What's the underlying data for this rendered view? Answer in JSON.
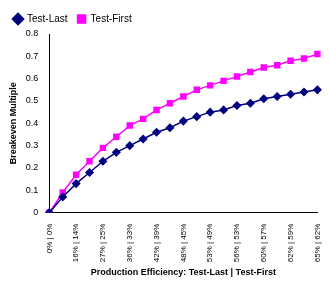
{
  "chart_data": {
    "type": "line",
    "x_label": "Production Efficiency: Test-Last | Test-First",
    "y_label": "Breakeven Multiple",
    "categories": [
      "0% | 0%",
      null,
      "16% | 14%",
      null,
      "27% | 25%",
      null,
      "36% | 33%",
      null,
      "42% | 39%",
      null,
      "48% | 45%",
      null,
      "53% | 49%",
      null,
      "56% | 53%",
      null,
      "60% | 57%",
      null,
      "62% | 59%",
      null,
      "65% | 62%"
    ],
    "series": [
      {
        "name": "Test-Last",
        "color": "#000080",
        "marker": "diamond",
        "line_style": "solid",
        "values": [
          0,
          0.07,
          0.13,
          0.18,
          0.23,
          0.27,
          0.3,
          0.33,
          0.36,
          0.38,
          0.41,
          0.43,
          0.45,
          0.46,
          0.48,
          0.49,
          0.51,
          0.52,
          0.53,
          0.54,
          0.55
        ]
      },
      {
        "name": "Test-First",
        "color": "#ff00ff",
        "marker": "square",
        "line_style": "solid",
        "values": [
          0,
          0.09,
          0.17,
          0.23,
          0.29,
          0.34,
          0.39,
          0.42,
          0.46,
          0.49,
          0.52,
          0.55,
          0.57,
          0.59,
          0.61,
          0.63,
          0.65,
          0.66,
          0.68,
          0.69,
          0.71
        ]
      }
    ],
    "ylim": [
      0,
      0.8
    ],
    "yticks": [
      0,
      0.1,
      0.2,
      0.3,
      0.4,
      0.5,
      0.6,
      0.7,
      0.8
    ],
    "grid": false,
    "legend": "top-left"
  }
}
